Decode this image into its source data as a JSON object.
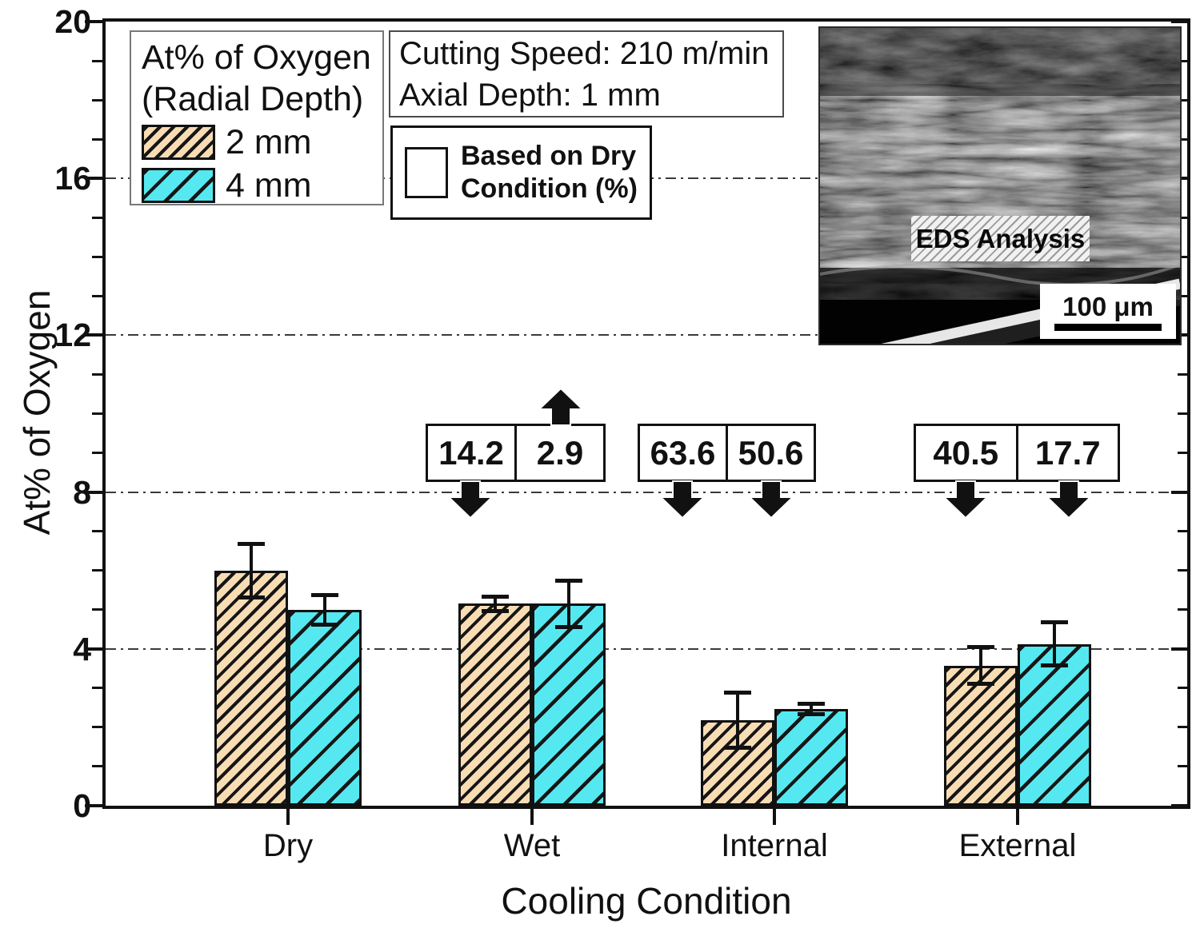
{
  "chart_data": {
    "type": "bar",
    "title": "",
    "xlabel": "Cooling Condition",
    "ylabel": "At% of Oxygen",
    "ylim": [
      0,
      20
    ],
    "yticks": [
      0,
      4,
      8,
      12,
      16,
      20
    ],
    "minor_tick_step": 1,
    "gridlines_at": [
      4,
      8,
      12,
      16
    ],
    "grid_style": "dash-dot",
    "legend_position": "top-left",
    "categories": [
      "Dry",
      "Wet",
      "Internal",
      "External"
    ],
    "series": [
      {
        "name": "2 mm",
        "color": "#F8DCB4",
        "values": [
          6.0,
          5.15,
          2.18,
          3.57
        ],
        "errors": [
          0.73,
          0.24,
          0.76,
          0.52
        ]
      },
      {
        "name": "4 mm",
        "color": "#55E8F0",
        "values": [
          5.0,
          5.15,
          2.47,
          4.12
        ],
        "errors": [
          0.43,
          0.65,
          0.18,
          0.6
        ]
      }
    ]
  },
  "axes": {
    "x_title": "Cooling Condition",
    "y_title": "At% of Oxygen",
    "x_tick_labels": [
      "Dry",
      "Wet",
      "Internal",
      "External"
    ],
    "y_tick_labels": [
      "0",
      "4",
      "8",
      "12",
      "16",
      "20"
    ]
  },
  "legend": {
    "title_line1": "At% of Oxygen",
    "title_line2": "(Radial Depth)",
    "entry1": "2 mm",
    "entry2": "4 mm"
  },
  "info_box": {
    "line1": "Cutting Speed: 210 m/min",
    "line2": "Axial Depth: 1 mm"
  },
  "based_box": {
    "line1": "Based on Dry",
    "line2": "Condition (%)"
  },
  "annotations": [
    {
      "left_value": "14.2",
      "left_arrow": "down",
      "right_value": "2.9",
      "right_arrow": "up"
    },
    {
      "left_value": "63.6",
      "left_arrow": "down",
      "right_value": "50.6",
      "right_arrow": "down"
    },
    {
      "left_value": "40.5",
      "left_arrow": "down",
      "right_value": "17.7",
      "right_arrow": "down"
    }
  ],
  "inset": {
    "label": "EDS Analysis",
    "scale_label": "100 μm"
  }
}
